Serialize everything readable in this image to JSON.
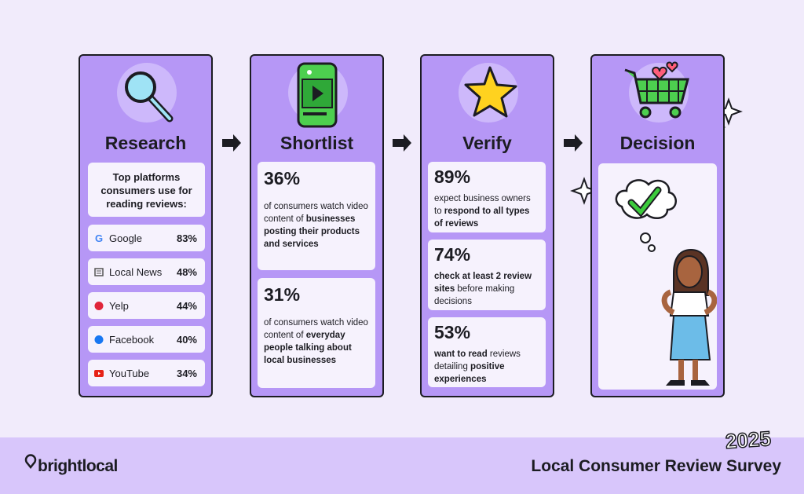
{
  "columns": [
    {
      "title": "Research",
      "intro": "Top platforms consumers use for reading reviews:",
      "platforms": [
        {
          "name": "Google",
          "value": "83%"
        },
        {
          "name": "Local News",
          "value": "48%"
        },
        {
          "name": "Yelp",
          "value": "44%"
        },
        {
          "name": "Facebook",
          "value": "40%"
        },
        {
          "name": "YouTube",
          "value": "34%"
        }
      ]
    },
    {
      "title": "Shortlist",
      "stats": [
        {
          "value": "36%",
          "text": [
            {
              "t": "of consumers watch video content of "
            },
            {
              "t": "businesses posting their products and services",
              "b": true
            }
          ]
        },
        {
          "value": "31%",
          "text": [
            {
              "t": "of consumers watch video content of "
            },
            {
              "t": "everyday people talking about local businesses",
              "b": true
            }
          ]
        }
      ]
    },
    {
      "title": "Verify",
      "stats": [
        {
          "value": "89%",
          "text": [
            {
              "t": "expect business owners to "
            },
            {
              "t": "respond to all types of reviews",
              "b": true
            }
          ]
        },
        {
          "value": "74%",
          "text": [
            {
              "t": "check at least 2 review sites",
              "b": true
            },
            {
              "t": " before making decisions"
            }
          ]
        },
        {
          "value": "53%",
          "text": [
            {
              "t": "want to read",
              "b": true
            },
            {
              "t": " reviews detailing "
            },
            {
              "t": "positive experiences",
              "b": true
            }
          ]
        }
      ]
    },
    {
      "title": "Decision"
    }
  ],
  "footer": {
    "brand": "brightlocal",
    "year": "2025",
    "title": "Local Consumer Review Survey"
  }
}
